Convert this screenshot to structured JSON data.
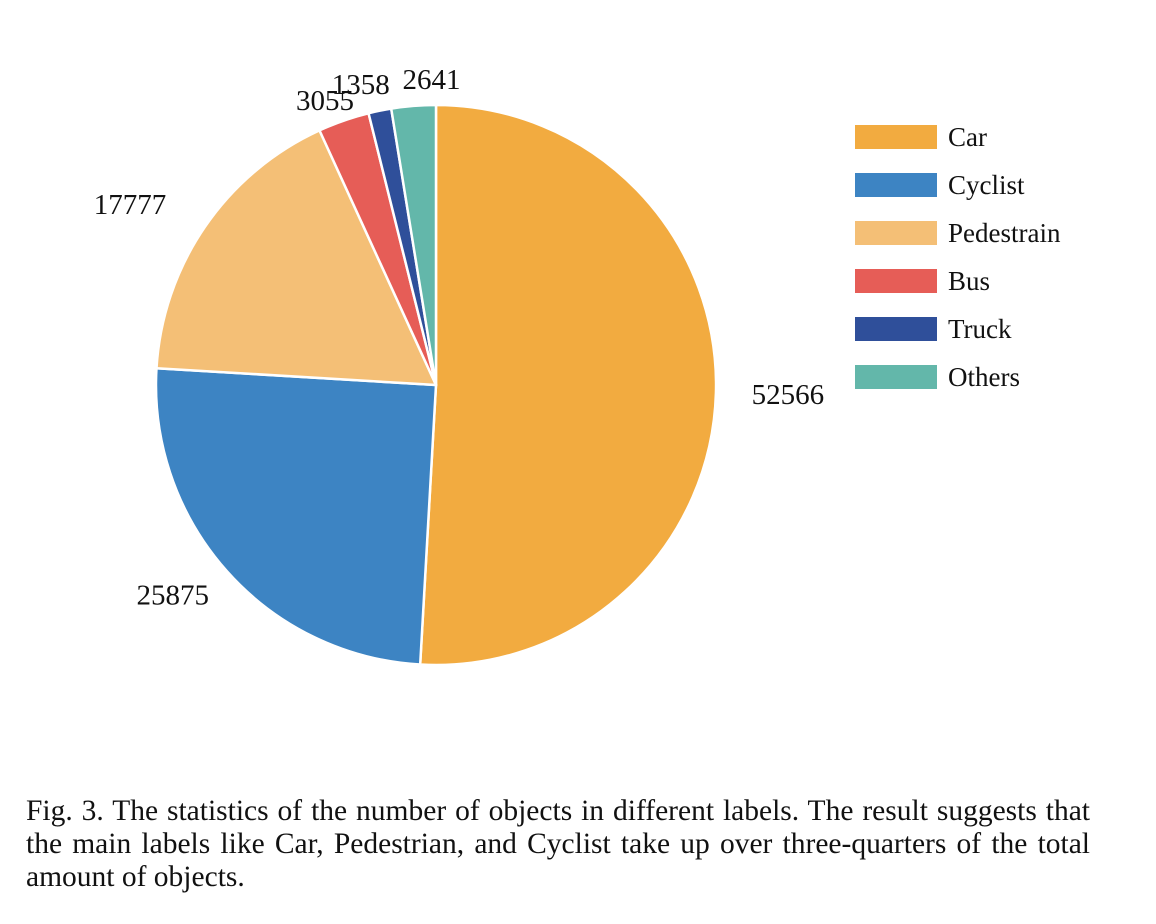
{
  "chart_data": {
    "type": "pie",
    "title": "",
    "categories": [
      "Car",
      "Cyclist",
      "Pedestrain",
      "Bus",
      "Truck",
      "Others"
    ],
    "values": [
      52566,
      25875,
      17777,
      3055,
      1358,
      2641
    ],
    "colors": [
      "#F2AB40",
      "#3D84C3",
      "#F4BF76",
      "#E65D57",
      "#2F4F9A",
      "#63B7AA"
    ],
    "start_angle_deg": 0,
    "direction": "clockwise",
    "legend_position": "right",
    "data_labels": [
      "52566",
      "25875",
      "17777",
      "3055",
      "1358",
      "2641"
    ]
  },
  "legend": {
    "items": [
      {
        "label": "Car",
        "color": "#F2AB40"
      },
      {
        "label": "Cyclist",
        "color": "#3D84C3"
      },
      {
        "label": "Pedestrain",
        "color": "#F4BF76"
      },
      {
        "label": "Bus",
        "color": "#E65D57"
      },
      {
        "label": "Truck",
        "color": "#2F4F9A"
      },
      {
        "label": "Others",
        "color": "#63B7AA"
      }
    ]
  },
  "caption": {
    "text": "Fig. 3.  The statistics of the number of objects in different labels. The result suggests that the main labels like Car, Pedestrian, and Cyclist take up over three-quarters of the total amount of objects."
  }
}
